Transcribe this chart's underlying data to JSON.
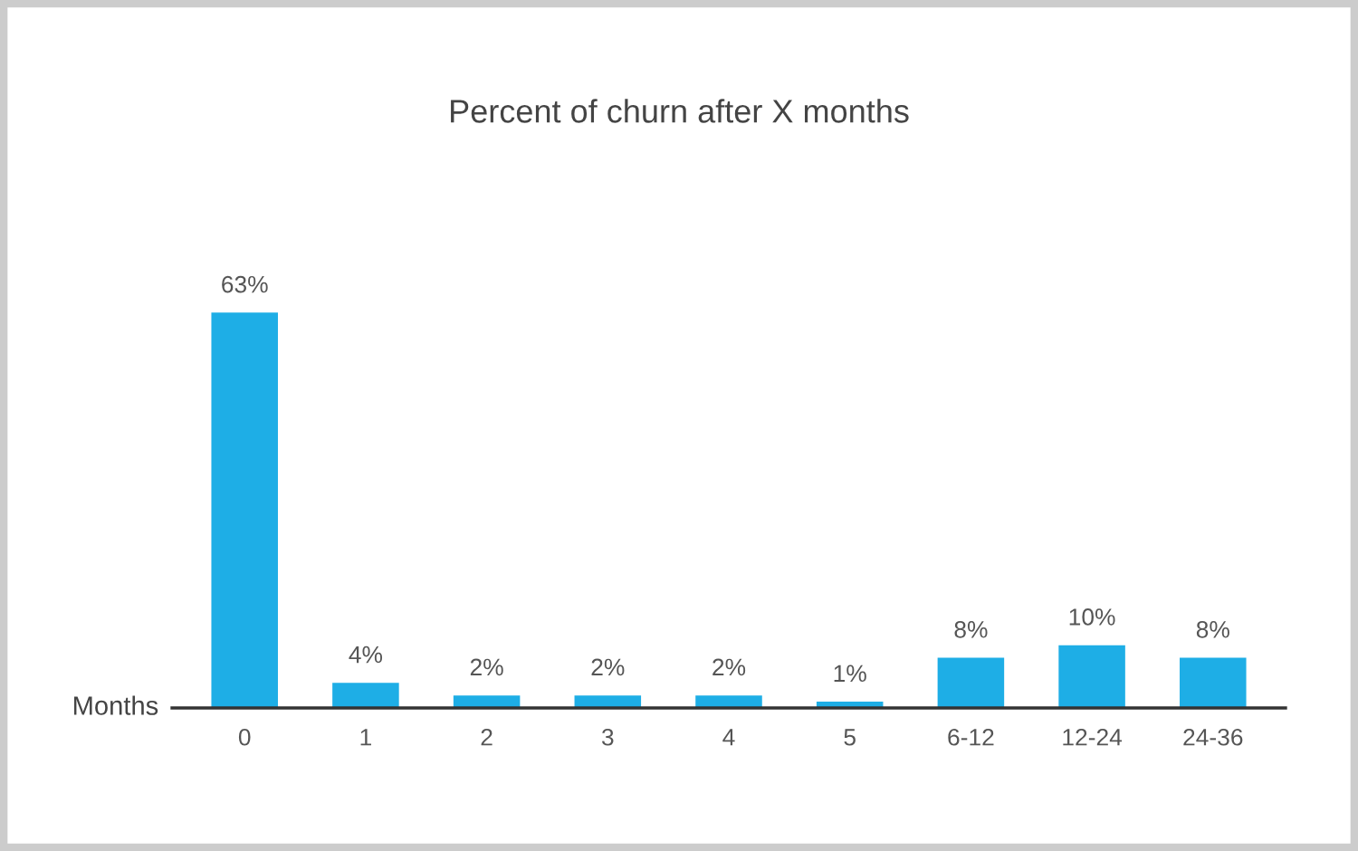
{
  "chart_data": {
    "type": "bar",
    "title": "Percent of churn after X months",
    "xlabel": "Months",
    "categories": [
      "0",
      "1",
      "2",
      "3",
      "4",
      "5",
      "6-12",
      "12-24",
      "24-36"
    ],
    "values": [
      63,
      4,
      2,
      2,
      2,
      1,
      8,
      10,
      8
    ],
    "value_labels": [
      "63%",
      "4%",
      "2%",
      "2%",
      "2%",
      "1%",
      "8%",
      "10%",
      "8%"
    ],
    "color": "#1eaee6",
    "grid": false,
    "legend": false
  }
}
